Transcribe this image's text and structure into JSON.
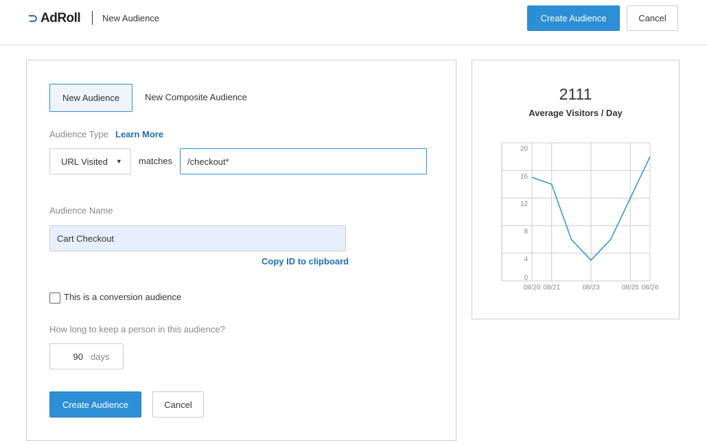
{
  "header": {
    "logo": "AdRoll",
    "title": "New Audience",
    "primary_button": "Create Audience",
    "secondary_button": "Cancel"
  },
  "form": {
    "tabs": [
      "New Audience",
      "New Composite Audience"
    ],
    "audience_type_label": "Audience Type",
    "learn_more": "Learn More",
    "url_select": "URL Visited",
    "matches": "matches",
    "url_input": "/checkout*",
    "name_label": "Audience Name",
    "name_value": "Cart Checkout",
    "copy_id": "Copy ID to clipboard",
    "conversion_label": "This is a conversion audience",
    "duration_label": "How long to keep a person in this audience?",
    "duration_value": 90,
    "duration_unit": "days",
    "primary_button": "Create Audience",
    "secondary_button": "Cancel"
  },
  "stats": {
    "value": 2111,
    "label": "Average Visitors / Day"
  },
  "chart_data": {
    "type": "line",
    "categories": [
      "08/20",
      "08/21",
      null,
      "08/23",
      null,
      "08/25",
      "08/26"
    ],
    "series": [
      {
        "color": "#2d8fd5",
        "values": [
          15,
          14,
          6,
          3,
          6,
          12,
          18
        ]
      }
    ],
    "ylim": [
      0,
      20
    ],
    "yticks": [
      0,
      4,
      8,
      12,
      16,
      20
    ],
    "grid": true
  }
}
